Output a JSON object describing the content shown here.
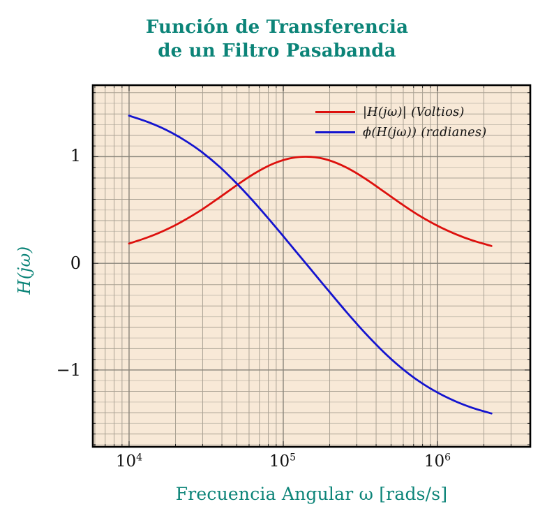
{
  "title": {
    "line1": "Función de Transferencia",
    "line2": "de un Filtro Pasabanda"
  },
  "axes": {
    "x_label": "Frecuencia Angular ω [rads/s]",
    "y_label": "H(jω)",
    "x_ticks": [
      {
        "base": "10",
        "exp": "4"
      },
      {
        "base": "10",
        "exp": "5"
      },
      {
        "base": "10",
        "exp": "6"
      }
    ],
    "y_ticks": [
      "1",
      "0",
      "−1"
    ]
  },
  "legend": {
    "items": [
      {
        "label": "|H(jω)| (Voltios)",
        "series": "magnitude"
      },
      {
        "label": "ϕ(H(jω)) (radianes)",
        "series": "phase"
      }
    ],
    "position": "top-right"
  },
  "colors": {
    "accent": "#0c8478",
    "magnitude": "#dd100d",
    "phase": "#1414cf",
    "plot_background": "#f8e9d7",
    "grid_minor": "#cdc3b4",
    "grid_mid": "#aaa294",
    "grid_major": "#89847a",
    "frame": "#000000",
    "tick": "#222222"
  },
  "chart_data": {
    "type": "line",
    "x_scale": "log",
    "title": "Función de Transferencia de un Filtro Pasabanda",
    "xlabel": "Frecuencia Angular ω [rads/s]",
    "ylabel": "H(jω)",
    "xlim": [
      5818,
      3998000
    ],
    "ylim": [
      -1.72,
      1.67
    ],
    "x_tick_values": [
      10000,
      100000,
      1000000
    ],
    "y_tick_values": [
      -1,
      0,
      1
    ],
    "grid": true,
    "legend_position": "top-right",
    "x": [
      10000,
      13183,
      17378,
      22387,
      29512,
      38905,
      51286,
      66069,
      87096,
      114815,
      151356,
      194984,
      257040,
      338844,
      446684,
      575440,
      758578,
      1000000,
      1318257,
      1698244,
      2238721
    ],
    "series": [
      {
        "name": "|H(jω)| (Voltios)",
        "color": "#dd100d",
        "values": [
          0.186,
          0.243,
          0.315,
          0.397,
          0.502,
          0.621,
          0.744,
          0.848,
          0.937,
          0.989,
          0.998,
          0.969,
          0.898,
          0.795,
          0.675,
          0.563,
          0.449,
          0.352,
          0.272,
          0.213,
          0.163
        ]
      },
      {
        "name": "ϕ(H(jω)) (radianes)",
        "color": "#1414cf",
        "values": [
          1.384,
          1.326,
          1.251,
          1.163,
          1.045,
          0.901,
          0.731,
          0.559,
          0.358,
          0.15,
          -0.059,
          -0.251,
          -0.457,
          -0.652,
          -0.83,
          -0.973,
          -1.105,
          -1.211,
          -1.295,
          -1.356,
          -1.407
        ]
      }
    ],
    "resonance_omega": 140000,
    "peak_magnitude": 1.0
  }
}
